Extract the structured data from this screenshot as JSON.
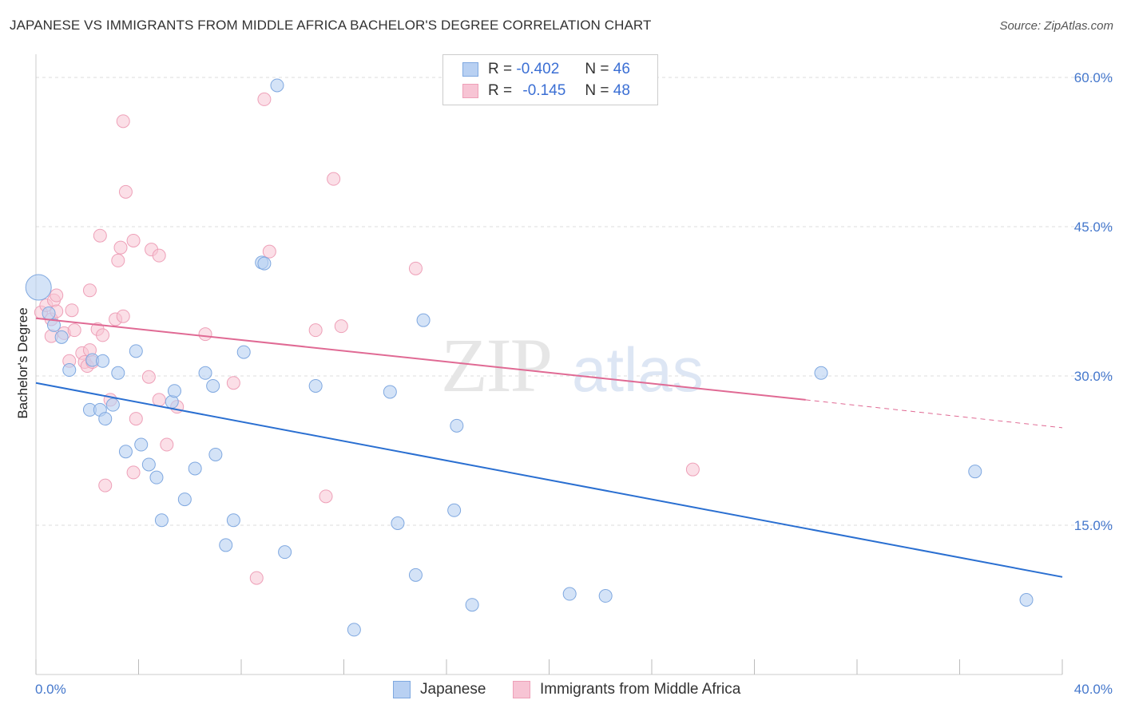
{
  "title": "JAPANESE VS IMMIGRANTS FROM MIDDLE AFRICA BACHELOR'S DEGREE CORRELATION CHART",
  "source": "Source: ZipAtlas.com",
  "watermark": {
    "zip": "ZIP",
    "atlas": "atlas"
  },
  "colors": {
    "blue_fill": "#b8d0f2",
    "blue_stroke": "#7fa8e0",
    "blue_line": "#2a6fd1",
    "pink_fill": "#f7c4d4",
    "pink_stroke": "#eea0b8",
    "pink_line": "#e06a94",
    "grid": "#dddddd",
    "tick_text": "#4477cc"
  },
  "legend_top": [
    {
      "r_label": "R =",
      "r_value": "-0.402",
      "n_label": "N =",
      "n_value": "46",
      "series": "Japanese"
    },
    {
      "r_label": "R =",
      "r_value": "-0.145",
      "n_label": "N =",
      "n_value": "48",
      "series": "Immigrants from Middle Africa"
    }
  ],
  "legend_bottom": [
    "Japanese",
    "Immigrants from Middle Africa"
  ],
  "chart_data": {
    "type": "scatter",
    "title": "JAPANESE VS IMMIGRANTS FROM MIDDLE AFRICA BACHELOR'S DEGREE CORRELATION CHART",
    "xlabel": "",
    "ylabel": "Bachelor's Degree",
    "xlim": [
      0,
      40
    ],
    "ylim": [
      0,
      62
    ],
    "x_tick_labels": [
      "0.0%",
      "40.0%"
    ],
    "y_ticks": [
      15,
      30,
      45,
      60
    ],
    "y_tick_labels": [
      "15.0%",
      "30.0%",
      "45.0%",
      "60.0%"
    ],
    "grid": true,
    "legend_placement": "top-center",
    "series": [
      {
        "name": "Japanese",
        "color": "#b8d0f2",
        "points": [
          [
            0.1,
            38.9
          ],
          [
            0.5,
            36.3
          ],
          [
            0.7,
            35.1
          ],
          [
            1.0,
            33.9
          ],
          [
            1.3,
            30.6
          ],
          [
            2.2,
            31.6
          ],
          [
            2.6,
            31.5
          ],
          [
            2.1,
            26.6
          ],
          [
            2.5,
            26.6
          ],
          [
            2.7,
            25.7
          ],
          [
            3.0,
            27.1
          ],
          [
            3.2,
            30.3
          ],
          [
            3.5,
            22.4
          ],
          [
            3.9,
            32.5
          ],
          [
            4.1,
            23.1
          ],
          [
            4.4,
            21.1
          ],
          [
            4.7,
            19.8
          ],
          [
            4.9,
            15.5
          ],
          [
            5.3,
            27.4
          ],
          [
            5.4,
            28.5
          ],
          [
            5.8,
            17.6
          ],
          [
            6.2,
            20.7
          ],
          [
            6.6,
            30.3
          ],
          [
            6.9,
            29.0
          ],
          [
            7.0,
            22.1
          ],
          [
            7.4,
            13.0
          ],
          [
            7.7,
            15.5
          ],
          [
            8.1,
            32.4
          ],
          [
            8.8,
            41.4
          ],
          [
            8.9,
            41.3
          ],
          [
            9.4,
            59.2
          ],
          [
            9.7,
            12.3
          ],
          [
            10.9,
            29.0
          ],
          [
            12.4,
            4.5
          ],
          [
            13.8,
            28.4
          ],
          [
            14.1,
            15.2
          ],
          [
            14.8,
            10.0
          ],
          [
            15.1,
            35.6
          ],
          [
            16.3,
            16.5
          ],
          [
            16.4,
            25.0
          ],
          [
            17.0,
            7.0
          ],
          [
            20.8,
            8.1
          ],
          [
            22.2,
            7.9
          ],
          [
            30.6,
            30.3
          ],
          [
            36.6,
            20.4
          ],
          [
            38.6,
            7.5
          ]
        ]
      },
      {
        "name": "Immigrants from Middle Africa",
        "color": "#f7c4d4",
        "points": [
          [
            0.2,
            36.4
          ],
          [
            0.4,
            37.1
          ],
          [
            0.6,
            35.7
          ],
          [
            0.6,
            34.0
          ],
          [
            0.7,
            37.6
          ],
          [
            0.8,
            38.1
          ],
          [
            0.8,
            36.5
          ],
          [
            1.1,
            34.3
          ],
          [
            1.3,
            31.5
          ],
          [
            1.4,
            36.6
          ],
          [
            1.5,
            34.6
          ],
          [
            1.8,
            32.3
          ],
          [
            1.9,
            31.4
          ],
          [
            2.0,
            31.0
          ],
          [
            2.1,
            32.6
          ],
          [
            2.1,
            38.6
          ],
          [
            2.2,
            31.4
          ],
          [
            2.4,
            34.7
          ],
          [
            2.5,
            44.1
          ],
          [
            2.6,
            34.1
          ],
          [
            2.7,
            19.0
          ],
          [
            2.9,
            27.6
          ],
          [
            3.1,
            35.7
          ],
          [
            3.2,
            41.6
          ],
          [
            3.3,
            42.9
          ],
          [
            3.4,
            36.0
          ],
          [
            3.4,
            55.6
          ],
          [
            3.5,
            48.5
          ],
          [
            3.8,
            43.6
          ],
          [
            3.8,
            20.3
          ],
          [
            3.9,
            25.7
          ],
          [
            4.4,
            29.9
          ],
          [
            4.5,
            42.7
          ],
          [
            4.8,
            27.6
          ],
          [
            4.8,
            42.1
          ],
          [
            5.1,
            23.1
          ],
          [
            5.5,
            26.9
          ],
          [
            6.6,
            34.2
          ],
          [
            7.7,
            29.3
          ],
          [
            8.6,
            9.7
          ],
          [
            8.9,
            57.8
          ],
          [
            9.1,
            42.5
          ],
          [
            10.9,
            34.6
          ],
          [
            11.3,
            17.9
          ],
          [
            11.6,
            49.8
          ],
          [
            11.9,
            35.0
          ],
          [
            14.8,
            40.8
          ],
          [
            25.6,
            20.6
          ]
        ]
      }
    ],
    "trend_lines": [
      {
        "series": "Japanese",
        "x": [
          0,
          40
        ],
        "y": [
          29.3,
          9.8
        ]
      },
      {
        "series": "Immigrants from Middle Africa",
        "x": [
          0,
          30
        ],
        "y": [
          35.8,
          27.6
        ],
        "dashed_extension": {
          "x": [
            30,
            40
          ],
          "y": [
            27.6,
            24.8
          ]
        }
      }
    ]
  }
}
